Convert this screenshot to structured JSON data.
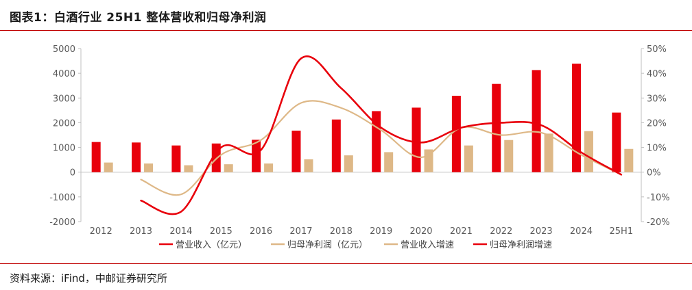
{
  "title": "图表1：白酒行业 25H1 整体营收和归母净利润",
  "source": "资料来源：iFind，中邮证券研究所",
  "colors": {
    "accent": "#e8000b",
    "tan": "#deb887",
    "rule": "#c00000"
  },
  "chart_data": {
    "type": "bar",
    "categories": [
      "2012",
      "2013",
      "2014",
      "2015",
      "2016",
      "2017",
      "2018",
      "2019",
      "2020",
      "2021",
      "2022",
      "2023",
      "2024",
      "25H1"
    ],
    "ylim": [
      -2000,
      5000
    ],
    "yticks": [
      5000,
      4000,
      3000,
      2000,
      1000,
      0,
      -1000,
      -2000
    ],
    "y2lim": [
      -20,
      50
    ],
    "y2ticks": [
      "50%",
      "40%",
      "30%",
      "20%",
      "10%",
      "0%",
      "-10%",
      "-20%"
    ],
    "series": [
      {
        "name": "营业收入（亿元）",
        "kind": "bar",
        "axis": "left",
        "color": "#e8000b",
        "values": [
          1220,
          1200,
          1080,
          1160,
          1310,
          1680,
          2130,
          2470,
          2610,
          3090,
          3570,
          4130,
          4390,
          2410
        ]
      },
      {
        "name": "归母净利润（亿元）",
        "kind": "bar",
        "axis": "left",
        "color": "#deb887",
        "values": [
          390,
          350,
          280,
          320,
          350,
          520,
          680,
          810,
          920,
          1080,
          1300,
          1560,
          1660,
          940
        ]
      },
      {
        "name": "营业收入增速",
        "kind": "line",
        "axis": "right",
        "color": "#deb887",
        "values": [
          null,
          -3,
          -9,
          7,
          13,
          28,
          26,
          17,
          6,
          18,
          15,
          16,
          7,
          -1
        ]
      },
      {
        "name": "归母净利润增速",
        "kind": "line",
        "axis": "right",
        "color": "#e8000b",
        "values": [
          null,
          -11.5,
          -16,
          10,
          9,
          46,
          34,
          18,
          12,
          18,
          20,
          19,
          8,
          -1
        ]
      }
    ]
  }
}
